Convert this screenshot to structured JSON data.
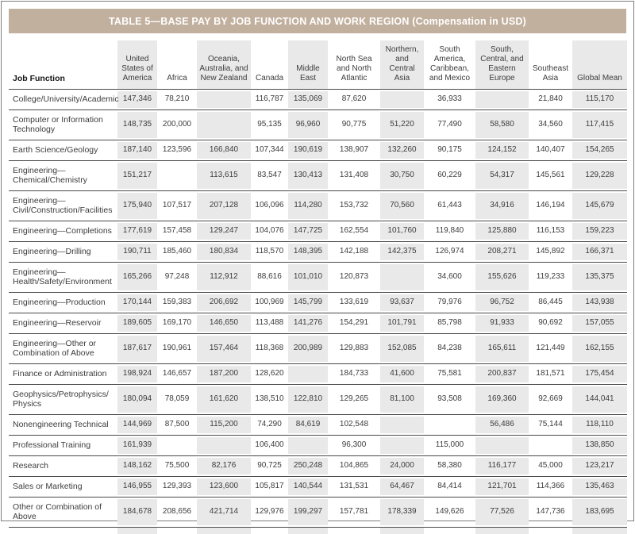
{
  "colors": {
    "title_bar": "#c2b09e",
    "stripe": "#e9e9e9"
  },
  "table": {
    "title": "TABLE 5—BASE PAY BY JOB FUNCTION AND WORK REGION (Compensation in USD)",
    "columns": [
      "Job Function",
      "United States of America",
      "Africa",
      "Oceania, Australia, and New Zealand",
      "Canada",
      "Middle East",
      "North Sea and North Atlantic",
      "Northern, and Central Asia",
      "South America, Caribbean, and Mexico",
      "South, Central, and Eastern Europe",
      "Southeast Asia",
      "Global Mean"
    ],
    "rows": [
      {
        "label": "College/University/Academic",
        "values": [
          "147,346",
          "78,210",
          "",
          "116,787",
          "135,069",
          "87,620",
          "",
          "36,933",
          "",
          "21,840",
          "115,170"
        ]
      },
      {
        "label": "Computer or Information\nTechnology",
        "values": [
          "148,735",
          "200,000",
          "",
          "95,135",
          "96,960",
          "90,775",
          "51,220",
          "77,490",
          "58,580",
          "34,560",
          "117,415"
        ]
      },
      {
        "label": "Earth Science/Geology",
        "values": [
          "187,140",
          "123,596",
          "166,840",
          "107,344",
          "190,619",
          "138,907",
          "132,260",
          "90,175",
          "124,152",
          "140,407",
          "154,265"
        ]
      },
      {
        "label": "Engineering—\nChemical/Chemistry",
        "values": [
          "151,217",
          "",
          "113,615",
          "83,547",
          "130,413",
          "131,408",
          "30,750",
          "60,229",
          "54,317",
          "145,561",
          "129,228"
        ]
      },
      {
        "label": "Engineering—\nCivil/Construction/Facilities",
        "values": [
          "175,940",
          "107,517",
          "207,128",
          "106,096",
          "114,280",
          "153,732",
          "70,560",
          "61,443",
          "34,916",
          "146,194",
          "145,679"
        ]
      },
      {
        "label": "Engineering—Completions",
        "values": [
          "177,619",
          "157,458",
          "129,247",
          "104,076",
          "147,725",
          "162,554",
          "101,760",
          "119,840",
          "125,880",
          "116,153",
          "159,223"
        ]
      },
      {
        "label": "Engineering—Drilling",
        "values": [
          "190,711",
          "185,460",
          "180,834",
          "118,570",
          "148,395",
          "142,188",
          "142,375",
          "126,974",
          "208,271",
          "145,892",
          "166,371"
        ]
      },
      {
        "label": "Engineering—\nHealth/Safety/Environment",
        "values": [
          "165,266",
          "97,248",
          "112,912",
          "88,616",
          "101,010",
          "120,873",
          "",
          "34,600",
          "155,626",
          "119,233",
          "135,375"
        ]
      },
      {
        "label": "Engineering—Production",
        "values": [
          "170,144",
          "159,383",
          "206,692",
          "100,969",
          "145,799",
          "133,619",
          "93,637",
          "79,976",
          "96,752",
          "86,445",
          "143,938"
        ]
      },
      {
        "label": "Engineering—Reservoir",
        "values": [
          "189,605",
          "169,170",
          "146,650",
          "113,488",
          "141,276",
          "154,291",
          "101,791",
          "85,798",
          "91,933",
          "90,692",
          "157,055"
        ]
      },
      {
        "label": "Engineering—Other or\nCombination of Above",
        "values": [
          "187,617",
          "190,961",
          "157,464",
          "118,368",
          "200,989",
          "129,883",
          "152,085",
          "84,238",
          "165,611",
          "121,449",
          "162,155"
        ]
      },
      {
        "label": "Finance or Administration",
        "values": [
          "198,924",
          "146,657",
          "187,200",
          "128,620",
          "",
          "184,733",
          "41,600",
          "75,581",
          "200,837",
          "181,571",
          "175,454"
        ]
      },
      {
        "label": "Geophysics/Petrophysics/\nPhysics",
        "values": [
          "180,094",
          "78,059",
          "161,620",
          "138,510",
          "122,810",
          "129,265",
          "81,100",
          "93,508",
          "169,360",
          "92,669",
          "144,041"
        ]
      },
      {
        "label": "Nonengineering Technical",
        "values": [
          "144,969",
          "87,500",
          "115,200",
          "74,290",
          "84,619",
          "102,548",
          "",
          "",
          "56,486",
          "75,144",
          "118,110"
        ]
      },
      {
        "label": "Professional Training",
        "values": [
          "161,939",
          "",
          "",
          "106,400",
          "",
          "96,300",
          "",
          "115,000",
          "",
          "",
          "138,850"
        ]
      },
      {
        "label": "Research",
        "values": [
          "148,162",
          "75,500",
          "82,176",
          "90,725",
          "250,248",
          "104,865",
          "24,000",
          "58,380",
          "116,177",
          "45,000",
          "123,217"
        ]
      },
      {
        "label": "Sales or Marketing",
        "values": [
          "146,955",
          "129,393",
          "123,600",
          "105,817",
          "140,544",
          "131,531",
          "64,467",
          "84,414",
          "121,701",
          "114,366",
          "135,463"
        ]
      },
      {
        "label": "Other or Combination of\nAbove",
        "values": [
          "184,678",
          "208,656",
          "421,714",
          "129,976",
          "199,297",
          "157,781",
          "178,339",
          "149,626",
          "77,526",
          "147,736",
          "183,695"
        ]
      }
    ]
  }
}
